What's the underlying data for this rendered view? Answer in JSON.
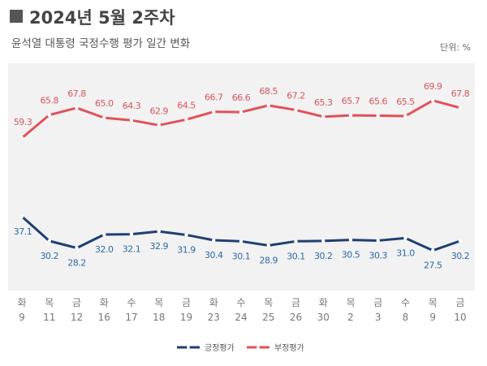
{
  "header": {
    "title": "2024년 5월 2주차",
    "subtitle": "윤석열 대통령 국정수행 평가 일간 변화",
    "unit": "단위: %"
  },
  "chart_data": {
    "type": "line",
    "title": "2024년 5월 2주차",
    "subtitle": "윤석열 대통령 국정수행 평가 일간 변화",
    "xlabel": "",
    "ylabel": "%",
    "ylim": [
      20,
      75
    ],
    "grid": false,
    "legend": "bottom-center",
    "categories": [
      {
        "day": "화",
        "date": "9"
      },
      {
        "day": "목",
        "date": "11"
      },
      {
        "day": "금",
        "date": "12"
      },
      {
        "day": "화",
        "date": "16"
      },
      {
        "day": "수",
        "date": "17"
      },
      {
        "day": "목",
        "date": "18"
      },
      {
        "day": "금",
        "date": "19"
      },
      {
        "day": "화",
        "date": "23"
      },
      {
        "day": "수",
        "date": "24"
      },
      {
        "day": "목",
        "date": "25"
      },
      {
        "day": "금",
        "date": "26"
      },
      {
        "day": "화",
        "date": "30"
      },
      {
        "day": "목",
        "date": "2"
      },
      {
        "day": "금",
        "date": "3"
      },
      {
        "day": "수",
        "date": "8"
      },
      {
        "day": "목",
        "date": "9"
      },
      {
        "day": "금",
        "date": "10"
      }
    ],
    "series": [
      {
        "name": "긍정평가",
        "color": "#1f3f73",
        "label_color": "#2a6aa8",
        "values": [
          37.1,
          30.2,
          28.2,
          32.0,
          32.1,
          32.9,
          31.9,
          30.4,
          30.1,
          28.9,
          30.1,
          30.2,
          30.5,
          30.3,
          31.0,
          27.5,
          30.2
        ]
      },
      {
        "name": "부정평가",
        "color": "#e0525a",
        "label_color": "#d9545b",
        "values": [
          59.3,
          65.8,
          67.8,
          65.0,
          64.3,
          62.9,
          64.5,
          66.7,
          66.6,
          68.5,
          67.2,
          65.3,
          65.7,
          65.6,
          65.5,
          69.9,
          67.8
        ]
      }
    ]
  }
}
